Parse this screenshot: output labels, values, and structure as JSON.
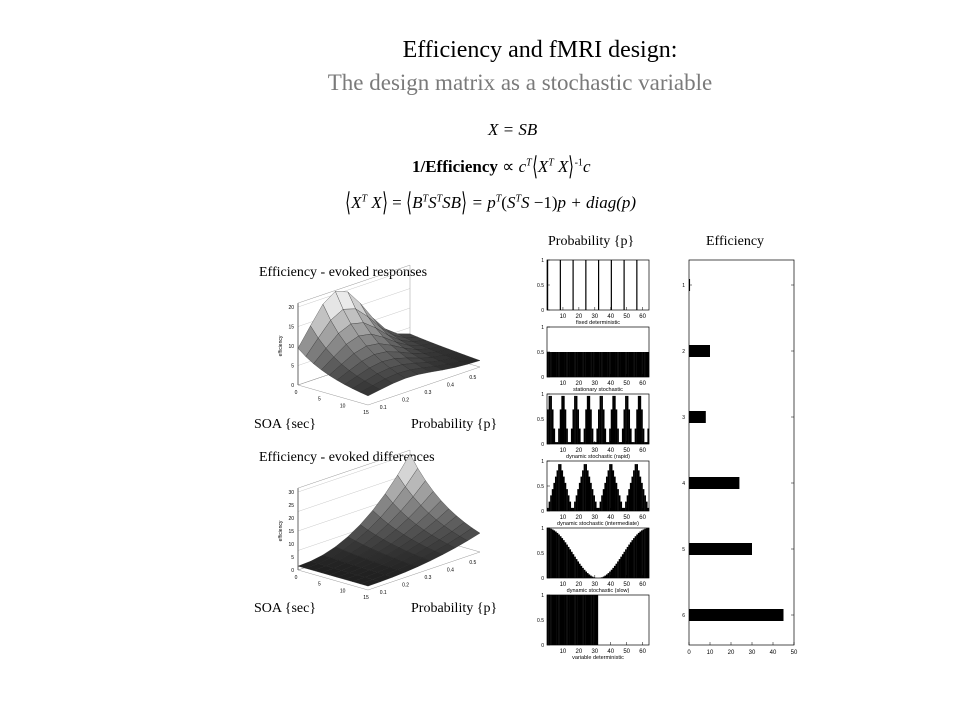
{
  "header": {
    "title": "Efficiency and fMRI design:",
    "subtitle": "The design matrix as a stochastic variable"
  },
  "equations": {
    "eq1_lhs": "X",
    "eq1_rhs": "= SB",
    "eq2_label": "1/Efficiency",
    "eq2_prop": "∝",
    "eq3_terms": "= p",
    "eq3_tail": "p + diag(p)"
  },
  "surfaces": {
    "responses_title": "Efficiency - evoked responses",
    "differences_title": "Efficiency - evoked differences",
    "soa_label": "SOA {sec}",
    "prob_label": "Probability {p}",
    "zaxis_label": "efficiency"
  },
  "chart_data": [
    {
      "type": "area",
      "title": "Probability {p}",
      "panels": [
        {
          "xlabel": "fixed deterministic",
          "pattern": "fixed"
        },
        {
          "xlabel": "stationary stochastic",
          "pattern": "stationary"
        },
        {
          "xlabel": "dynamic stochastic (rapid)",
          "pattern": "rapid"
        },
        {
          "xlabel": "dynamic stochastic (intermediate)",
          "pattern": "intermediate"
        },
        {
          "xlabel": "dynamic stochastic (slow)",
          "pattern": "slow"
        },
        {
          "xlabel": "variable deterministic",
          "pattern": "variable"
        }
      ],
      "xticks": [
        "10",
        "20",
        "30",
        "40",
        "50",
        "60"
      ],
      "yticks": [
        "0",
        "0.5",
        "1"
      ],
      "xlim": [
        0,
        64
      ],
      "ylim": [
        0,
        1
      ]
    },
    {
      "type": "bar",
      "title": "Efficiency",
      "orientation": "horizontal",
      "categories": [
        "1",
        "2",
        "3",
        "4",
        "5",
        "6"
      ],
      "values": [
        0.5,
        10,
        8,
        24,
        30,
        45
      ],
      "xticks": [
        "0",
        "10",
        "20",
        "30",
        "40",
        "50"
      ],
      "xlim": [
        0,
        50
      ]
    }
  ]
}
